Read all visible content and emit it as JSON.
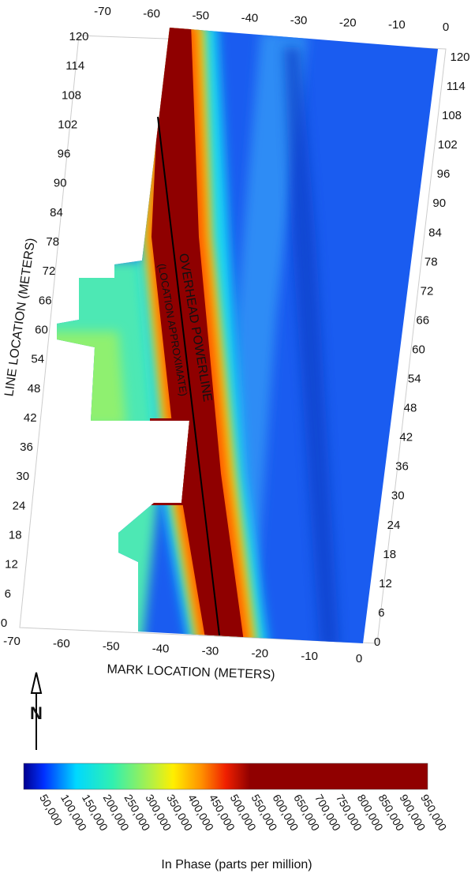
{
  "axes": {
    "top_ticks": [
      -70,
      -60,
      -50,
      -40,
      -30,
      -20,
      -10,
      0
    ],
    "bottom_ticks": [
      -70,
      -60,
      -50,
      -40,
      -30,
      -20,
      -10,
      0
    ],
    "left_ticks": [
      120,
      114,
      108,
      102,
      96,
      90,
      84,
      78,
      72,
      66,
      60,
      54,
      48,
      42,
      36,
      30,
      24,
      18,
      12,
      6,
      0
    ],
    "right_ticks": [
      120,
      114,
      108,
      102,
      96,
      90,
      84,
      78,
      72,
      66,
      60,
      54,
      48,
      42,
      36,
      30,
      24,
      18,
      12,
      6,
      0
    ],
    "x_label": "MARK LOCATION (METERS)",
    "y_label": "LINE LOCATION (METERS)"
  },
  "annotation": {
    "line1": "OVERHEAD POWERLINE",
    "line2": "(LOCATION APPROXIMATE)"
  },
  "north_label": "N",
  "colorbar": {
    "labels": [
      "50,000",
      "100,000",
      "150,000",
      "200,000",
      "250,000",
      "300,000",
      "350,000",
      "400,000",
      "450,000",
      "500,000",
      "550,000",
      "600,000",
      "650,000",
      "700,000",
      "750,000",
      "800,000",
      "850,000",
      "900,000",
      "950,000"
    ],
    "title": "In Phase (parts per million)"
  }
}
